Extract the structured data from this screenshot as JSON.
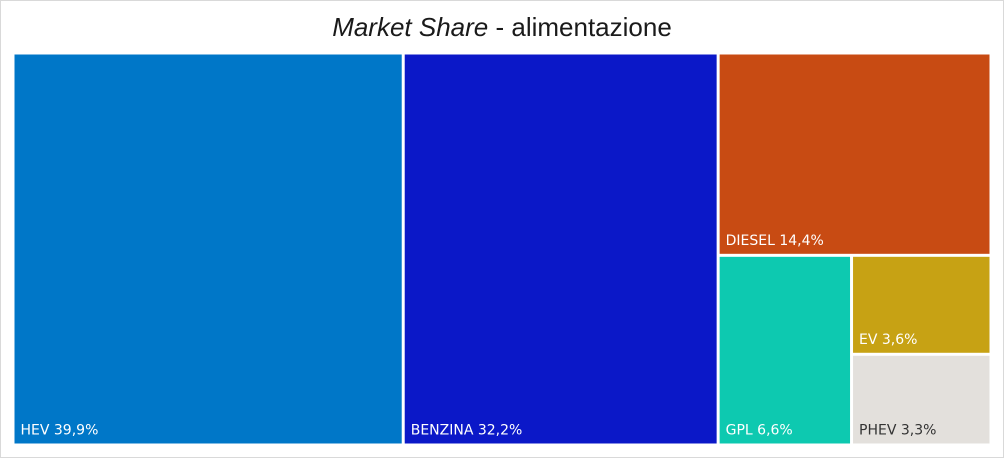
{
  "chart_data": {
    "type": "treemap",
    "title_italic": "Market Share",
    "title_rest": " - alimentazione",
    "items": [
      {
        "name": "HEV",
        "label": "HEV 39,9%",
        "value": 39.9,
        "color": "#0077C8",
        "text_color": "#ffffff"
      },
      {
        "name": "BENZINA",
        "label": "BENZINA 32,2%",
        "value": 32.2,
        "color": "#0B18C8",
        "text_color": "#ffffff"
      },
      {
        "name": "DIESEL",
        "label": "DIESEL 14,4%",
        "value": 14.4,
        "color": "#C84B13",
        "text_color": "#ffffff"
      },
      {
        "name": "GPL",
        "label": "GPL 6,6%",
        "value": 6.6,
        "color": "#0DC9B0",
        "text_color": "#ffffff"
      },
      {
        "name": "EV",
        "label": "EV 3,6%",
        "value": 3.6,
        "color": "#C7A214",
        "text_color": "#ffffff"
      },
      {
        "name": "PHEV",
        "label": "PHEV 3,3%",
        "value": 3.3,
        "color": "#E3E0DC",
        "text_color": "#333333"
      }
    ]
  }
}
